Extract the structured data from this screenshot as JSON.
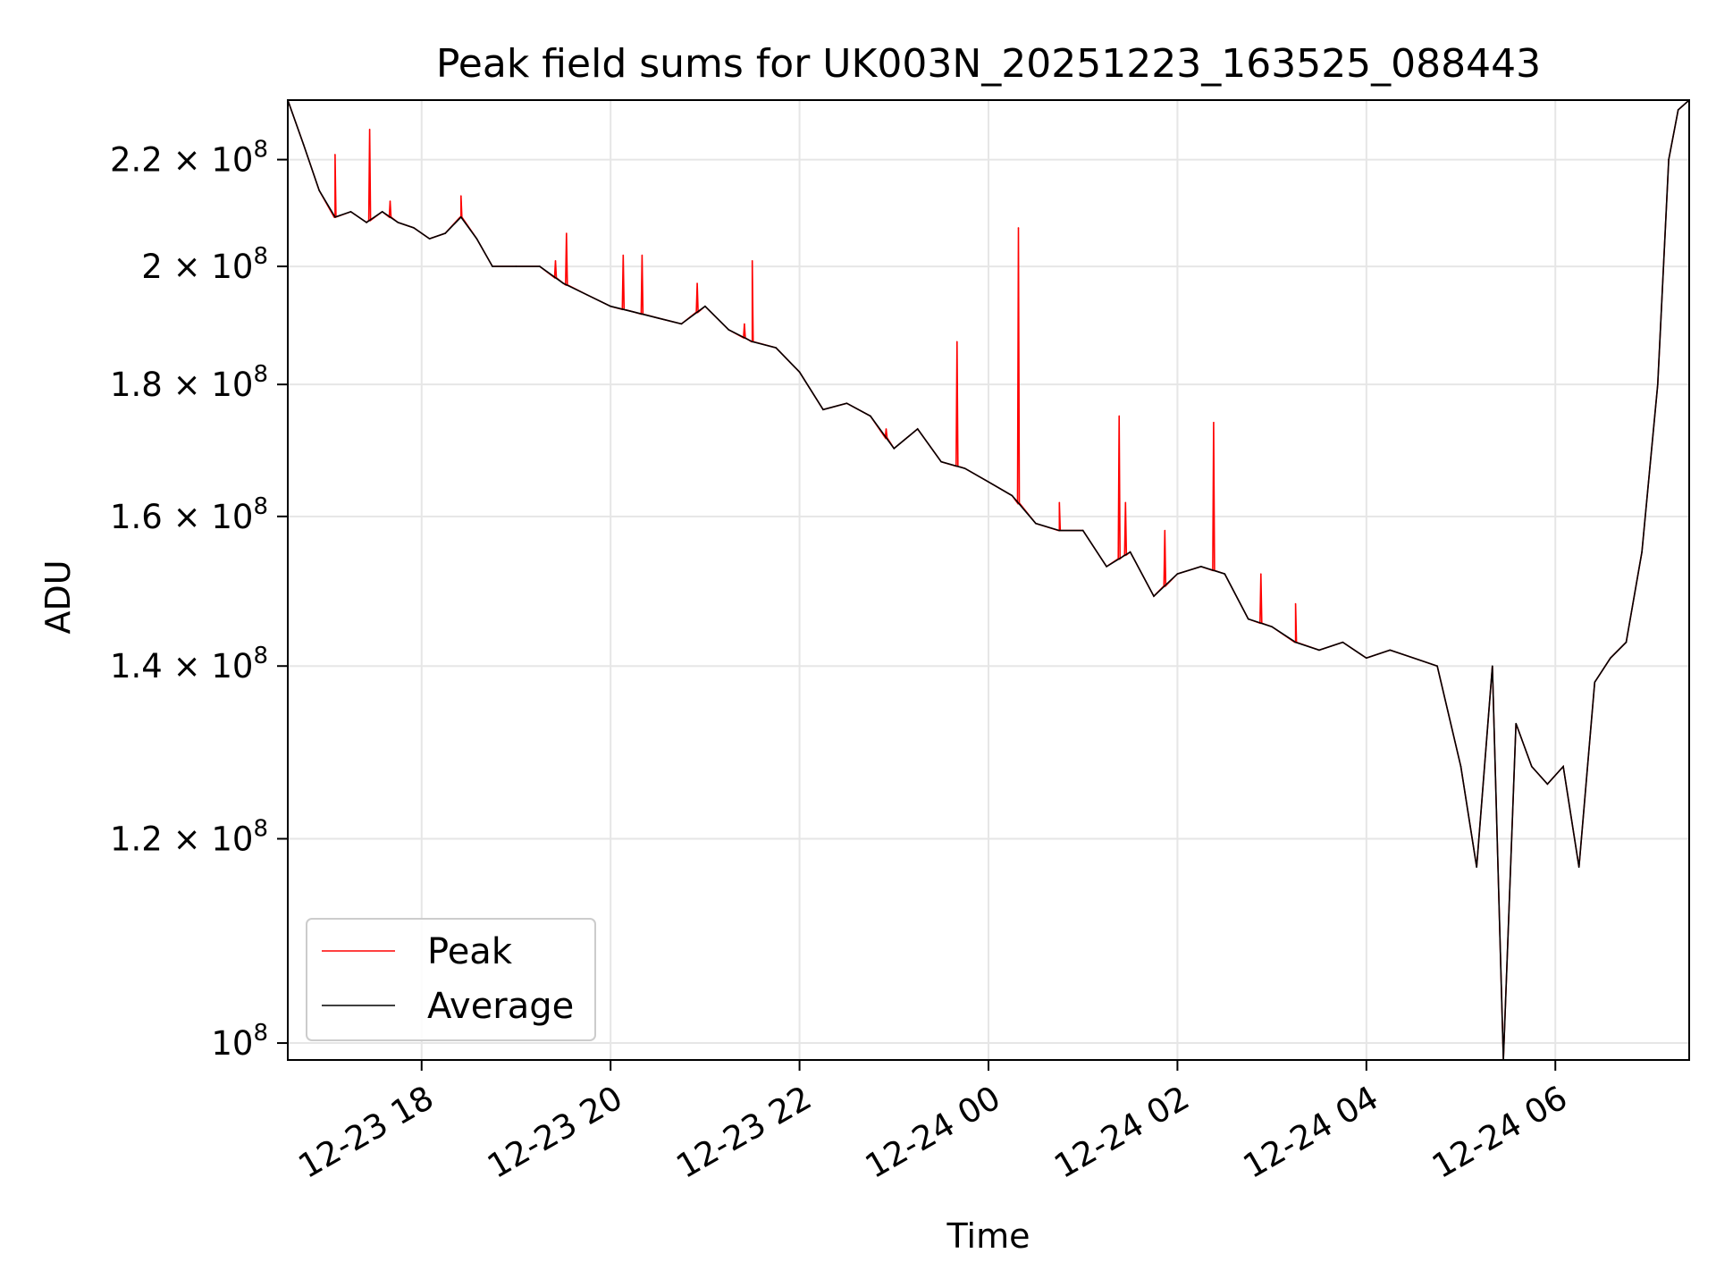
{
  "chart_data": {
    "type": "line",
    "title": "Peak field sums for UK003N_20251223_163525_088443",
    "xlabel": "Time",
    "ylabel": "ADU",
    "yscale": "log",
    "xlim": [
      "2025-12-23 16:35",
      "2025-12-24 07:25"
    ],
    "ylim": [
      98500000,
      232000000
    ],
    "grid": true,
    "legend_position": "lower-left",
    "x_ticks": [
      {
        "t": "2025-12-23 18:00",
        "label": "12-23 18"
      },
      {
        "t": "2025-12-23 20:00",
        "label": "12-23 20"
      },
      {
        "t": "2025-12-23 22:00",
        "label": "12-23 22"
      },
      {
        "t": "2025-12-24 00:00",
        "label": "12-24 00"
      },
      {
        "t": "2025-12-24 02:00",
        "label": "12-24 02"
      },
      {
        "t": "2025-12-24 04:00",
        "label": "12-24 04"
      },
      {
        "t": "2025-12-24 06:00",
        "label": "12-24 06"
      }
    ],
    "y_ticks": [
      {
        "value": 100000000,
        "mantissa": "",
        "exponent": "8"
      },
      {
        "value": 120000000,
        "mantissa": "1.2",
        "exponent": "8"
      },
      {
        "value": 140000000,
        "mantissa": "1.4",
        "exponent": "8"
      },
      {
        "value": 160000000,
        "mantissa": "1.6",
        "exponent": "8"
      },
      {
        "value": 180000000,
        "mantissa": "1.8",
        "exponent": "8"
      },
      {
        "value": 200000000,
        "mantissa": "2",
        "exponent": "8"
      },
      {
        "value": 220000000,
        "mantissa": "2.2",
        "exponent": "8"
      }
    ],
    "tick_base": "10",
    "tick_times": "×",
    "series": [
      {
        "name": "Average",
        "color": "#000000",
        "points": [
          [
            "2025-12-23 16:35",
            232000000
          ],
          [
            "2025-12-23 16:45",
            223000000
          ],
          [
            "2025-12-23 16:55",
            214000000
          ],
          [
            "2025-12-23 17:05",
            209000000
          ],
          [
            "2025-12-23 17:15",
            210000000
          ],
          [
            "2025-12-23 17:25",
            208000000
          ],
          [
            "2025-12-23 17:35",
            210000000
          ],
          [
            "2025-12-23 17:45",
            208000000
          ],
          [
            "2025-12-23 17:55",
            207000000
          ],
          [
            "2025-12-23 18:05",
            205000000
          ],
          [
            "2025-12-23 18:15",
            206000000
          ],
          [
            "2025-12-23 18:25",
            209000000
          ],
          [
            "2025-12-23 18:35",
            205000000
          ],
          [
            "2025-12-23 18:45",
            200000000
          ],
          [
            "2025-12-23 19:00",
            200000000
          ],
          [
            "2025-12-23 19:15",
            200000000
          ],
          [
            "2025-12-23 19:30",
            197000000
          ],
          [
            "2025-12-23 19:45",
            195000000
          ],
          [
            "2025-12-23 20:00",
            193000000
          ],
          [
            "2025-12-23 20:15",
            192000000
          ],
          [
            "2025-12-23 20:30",
            191000000
          ],
          [
            "2025-12-23 20:45",
            190000000
          ],
          [
            "2025-12-23 21:00",
            193000000
          ],
          [
            "2025-12-23 21:15",
            189000000
          ],
          [
            "2025-12-23 21:30",
            187000000
          ],
          [
            "2025-12-23 21:45",
            186000000
          ],
          [
            "2025-12-23 22:00",
            182000000
          ],
          [
            "2025-12-23 22:15",
            176000000
          ],
          [
            "2025-12-23 22:30",
            177000000
          ],
          [
            "2025-12-23 22:45",
            175000000
          ],
          [
            "2025-12-23 23:00",
            170000000
          ],
          [
            "2025-12-23 23:15",
            173000000
          ],
          [
            "2025-12-23 23:30",
            168000000
          ],
          [
            "2025-12-23 23:45",
            167000000
          ],
          [
            "2025-12-24 00:00",
            165000000
          ],
          [
            "2025-12-24 00:15",
            163000000
          ],
          [
            "2025-12-24 00:30",
            159000000
          ],
          [
            "2025-12-24 00:45",
            158000000
          ],
          [
            "2025-12-24 01:00",
            158000000
          ],
          [
            "2025-12-24 01:15",
            153000000
          ],
          [
            "2025-12-24 01:30",
            155000000
          ],
          [
            "2025-12-24 01:45",
            149000000
          ],
          [
            "2025-12-24 02:00",
            152000000
          ],
          [
            "2025-12-24 02:15",
            153000000
          ],
          [
            "2025-12-24 02:30",
            152000000
          ],
          [
            "2025-12-24 02:45",
            146000000
          ],
          [
            "2025-12-24 03:00",
            145000000
          ],
          [
            "2025-12-24 03:15",
            143000000
          ],
          [
            "2025-12-24 03:30",
            142000000
          ],
          [
            "2025-12-24 03:45",
            143000000
          ],
          [
            "2025-12-24 04:00",
            141000000
          ],
          [
            "2025-12-24 04:15",
            142000000
          ],
          [
            "2025-12-24 04:30",
            141000000
          ],
          [
            "2025-12-24 04:45",
            140000000
          ],
          [
            "2025-12-24 05:00",
            128000000
          ],
          [
            "2025-12-24 05:10",
            117000000
          ],
          [
            "2025-12-24 05:20",
            140000000
          ],
          [
            "2025-12-24 05:27",
            98500000
          ],
          [
            "2025-12-24 05:35",
            133000000
          ],
          [
            "2025-12-24 05:45",
            128000000
          ],
          [
            "2025-12-24 05:55",
            126000000
          ],
          [
            "2025-12-24 06:05",
            128000000
          ],
          [
            "2025-12-24 06:15",
            117000000
          ],
          [
            "2025-12-24 06:25",
            138000000
          ],
          [
            "2025-12-24 06:35",
            141000000
          ],
          [
            "2025-12-24 06:45",
            143000000
          ],
          [
            "2025-12-24 06:55",
            155000000
          ],
          [
            "2025-12-24 07:05",
            180000000
          ],
          [
            "2025-12-24 07:12",
            220000000
          ],
          [
            "2025-12-24 07:18",
            230000000
          ],
          [
            "2025-12-24 07:25",
            232000000
          ]
        ]
      },
      {
        "name": "Peak",
        "color": "#ff0000",
        "spikes": [
          [
            "2025-12-23 17:05",
            221000000
          ],
          [
            "2025-12-23 17:27",
            226000000
          ],
          [
            "2025-12-23 17:40",
            212000000
          ],
          [
            "2025-12-23 18:25",
            213000000
          ],
          [
            "2025-12-23 19:25",
            201000000
          ],
          [
            "2025-12-23 19:32",
            206000000
          ],
          [
            "2025-12-23 20:08",
            202000000
          ],
          [
            "2025-12-23 20:20",
            202000000
          ],
          [
            "2025-12-23 20:55",
            197000000
          ],
          [
            "2025-12-23 21:25",
            190000000
          ],
          [
            "2025-12-23 21:30",
            201000000
          ],
          [
            "2025-12-23 22:55",
            173000000
          ],
          [
            "2025-12-23 23:40",
            187000000
          ],
          [
            "2025-12-24 00:19",
            207000000
          ],
          [
            "2025-12-24 00:45",
            162000000
          ],
          [
            "2025-12-24 01:23",
            175000000
          ],
          [
            "2025-12-24 01:27",
            162000000
          ],
          [
            "2025-12-24 01:52",
            158000000
          ],
          [
            "2025-12-24 02:23",
            174000000
          ],
          [
            "2025-12-24 02:53",
            152000000
          ],
          [
            "2025-12-24 03:15",
            148000000
          ]
        ]
      }
    ]
  }
}
